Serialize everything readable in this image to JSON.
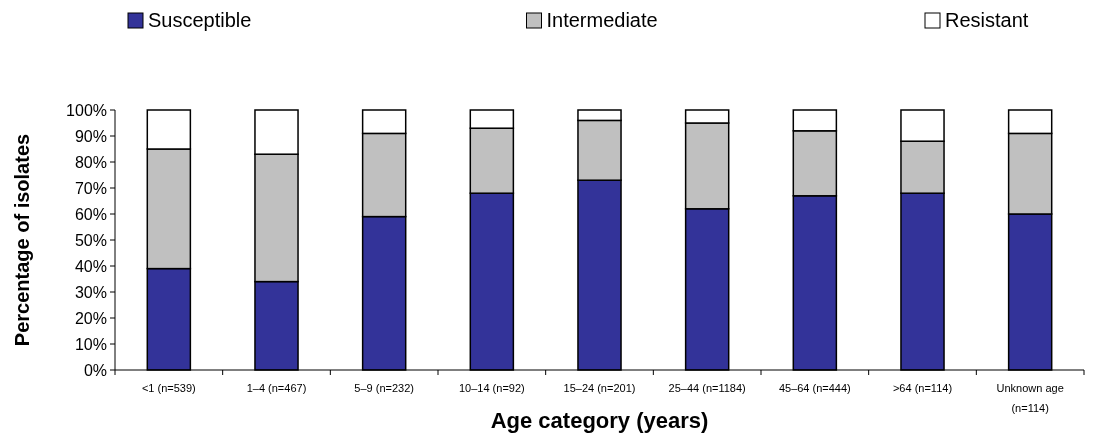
{
  "chart_data": {
    "type": "bar",
    "stacked": true,
    "xlabel": "Age category (years)",
    "ylabel": "Percentage of isolates",
    "categories": [
      "<1 (n=539)",
      "1–4 (n=467)",
      "5–9 (n=232)",
      "10–14 (n=92)",
      "15–24 (n=201)",
      "25–44 (n=1184)",
      "45–64 (n=444)",
      ">64 (n=114)",
      "Unknown age (n=114)"
    ],
    "series": [
      {
        "name": "Susceptible",
        "color": "#333399",
        "values": [
          39,
          34,
          59,
          68,
          73,
          62,
          67,
          68,
          60
        ]
      },
      {
        "name": "Intermediate",
        "color": "#c0c0c0",
        "values": [
          46,
          49,
          32,
          25,
          23,
          33,
          25,
          20,
          31
        ]
      },
      {
        "name": "Resistant",
        "color": "#ffffff",
        "values": [
          15,
          17,
          9,
          7,
          4,
          5,
          8,
          12,
          9
        ]
      }
    ],
    "ylim": [
      0,
      100
    ],
    "yticks": [
      {
        "value": 0,
        "label": "0%"
      },
      {
        "value": 10,
        "label": "10%"
      },
      {
        "value": 20,
        "label": "20%"
      },
      {
        "value": 30,
        "label": "30%"
      },
      {
        "value": 40,
        "label": "40%"
      },
      {
        "value": 50,
        "label": "50%"
      },
      {
        "value": 60,
        "label": "60%"
      },
      {
        "value": 70,
        "label": "70%"
      },
      {
        "value": 80,
        "label": "80%"
      },
      {
        "value": 90,
        "label": "90%"
      },
      {
        "value": 100,
        "label": "100%"
      }
    ],
    "legend": "top",
    "grid": false
  }
}
